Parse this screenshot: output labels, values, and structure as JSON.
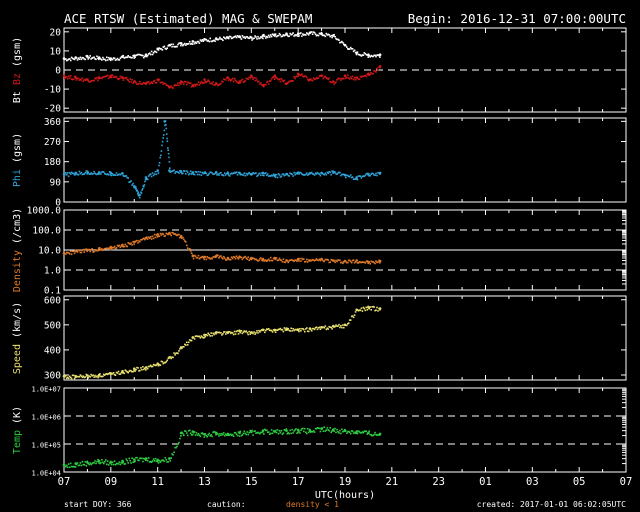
{
  "header": {
    "title": "ACE RTSW (Estimated) MAG & SWEPAM",
    "begin": "Begin: 2016-12-31 07:00:00UTC"
  },
  "footer": {
    "start_doy": "start DOY: 366",
    "caution_label": "caution:",
    "caution_text": "density < 1",
    "created": "created: 2017-01-01 06:02:05UTC"
  },
  "colors": {
    "background": "#000000",
    "frame": "#ffffff",
    "bt": "#ffffff",
    "bz": "#d01818",
    "phi": "#2fa3d8",
    "density": "#e07a28",
    "speed": "#e8e070",
    "temp": "#2ecc40",
    "caution": "#e07a28"
  },
  "chart_data": {
    "type": "scatter",
    "x_axis": {
      "label": "UTC(hours)",
      "range_hours": [
        7,
        31
      ],
      "tick_labels": [
        "07",
        "09",
        "11",
        "13",
        "15",
        "17",
        "19",
        "21",
        "23",
        "01",
        "03",
        "05",
        "07"
      ],
      "data_end_hour": 20.7
    },
    "panels": [
      {
        "id": "mag",
        "ylabel_parts": [
          {
            "text": "Bt",
            "color": "#ffffff"
          },
          {
            "text": "Bz",
            "color": "#d01818"
          },
          {
            "text": "(gsm)",
            "color": "#ffffff"
          }
        ],
        "ylim": [
          -22,
          22
        ],
        "yticks": [
          {
            "v": 20,
            "t": "20"
          },
          {
            "v": 10,
            "t": "10"
          },
          {
            "v": 0,
            "t": "0"
          },
          {
            "v": -10,
            "t": "-10"
          },
          {
            "v": -20,
            "t": "-20"
          }
        ],
        "dashed_lines": [
          0
        ],
        "series": [
          {
            "name": "Bt",
            "color": "#ffffff",
            "x": [
              7,
              7.5,
              8,
              8.5,
              9,
              9.5,
              10,
              10.5,
              11,
              11.5,
              12,
              12.5,
              13,
              13.5,
              14,
              14.5,
              15,
              15.5,
              16,
              16.5,
              17,
              17.5,
              18,
              18.5,
              19,
              19.5,
              20,
              20.5
            ],
            "y": [
              6,
              6.5,
              7,
              6.5,
              6,
              7,
              7.5,
              8,
              11,
              13,
              14,
              15,
              16,
              16.5,
              17,
              17.5,
              17,
              18,
              18.5,
              19,
              19,
              19.5,
              19,
              18,
              13,
              9,
              8,
              8
            ]
          },
          {
            "name": "Bz",
            "color": "#d01818",
            "x": [
              7,
              7.5,
              8,
              8.5,
              9,
              9.5,
              10,
              10.5,
              11,
              11.5,
              12,
              12.5,
              13,
              13.5,
              14,
              14.5,
              15,
              15.5,
              16,
              16.5,
              17,
              17.5,
              18,
              18.5,
              19,
              19.5,
              20,
              20.5
            ],
            "y": [
              -3,
              -4,
              -5,
              -4,
              -3,
              -4,
              -6,
              -7,
              -5,
              -9,
              -6,
              -8,
              -5,
              -7,
              -4,
              -6,
              -3,
              -8,
              -3,
              -7,
              -2,
              -5,
              -3,
              -6,
              -3,
              -4,
              -2,
              2
            ]
          }
        ]
      },
      {
        "id": "phi",
        "ylabel_parts": [
          {
            "text": "Phi",
            "color": "#2fa3d8"
          },
          {
            "text": "(gsm)",
            "color": "#ffffff"
          }
        ],
        "ylim": [
          0,
          375
        ],
        "yticks": [
          {
            "v": 360,
            "t": "360"
          },
          {
            "v": 270,
            "t": "270"
          },
          {
            "v": 180,
            "t": "180"
          },
          {
            "v": 90,
            "t": "90"
          },
          {
            "v": 0,
            "t": "0"
          }
        ],
        "dashed_lines": [],
        "series": [
          {
            "name": "Phi",
            "color": "#2fa3d8",
            "x": [
              7,
              7.5,
              8,
              8.5,
              9,
              9.5,
              10,
              10.2,
              10.5,
              11,
              11.3,
              11.5,
              12,
              12.5,
              13,
              13.5,
              14,
              14.5,
              15,
              15.5,
              16,
              16.5,
              17,
              17.5,
              18,
              18.5,
              19,
              19.5,
              20,
              20.5
            ],
            "y": [
              125,
              130,
              135,
              132,
              130,
              128,
              70,
              30,
              110,
              140,
              360,
              140,
              135,
              132,
              130,
              132,
              128,
              130,
              125,
              130,
              120,
              125,
              130,
              128,
              130,
              135,
              120,
              110,
              125,
              130
            ]
          }
        ]
      },
      {
        "id": "density",
        "ylabel_parts": [
          {
            "text": "Density",
            "color": "#e07a28"
          },
          {
            "text": "(/cm3)",
            "color": "#ffffff"
          }
        ],
        "scale": "log",
        "ylim": [
          0.1,
          1000
        ],
        "yticks": [
          {
            "v": 1000,
            "t": "1000.0"
          },
          {
            "v": 100,
            "t": "100.0"
          },
          {
            "v": 10,
            "t": "10.0"
          },
          {
            "v": 1,
            "t": "1.0"
          },
          {
            "v": 0.1,
            "t": "0.1"
          }
        ],
        "dashed_lines": [
          100,
          1
        ],
        "solid_lines": [
          10
        ],
        "series": [
          {
            "name": "Density",
            "color": "#e07a28",
            "x": [
              7,
              7.5,
              8,
              8.5,
              9,
              9.5,
              10,
              10.5,
              11,
              11.5,
              12,
              12.5,
              13,
              13.5,
              14,
              14.5,
              15,
              15.5,
              16,
              16.5,
              17,
              17.5,
              18,
              18.5,
              19,
              19.5,
              20,
              20.5
            ],
            "y": [
              7,
              9,
              10,
              12,
              14,
              18,
              25,
              40,
              60,
              70,
              50,
              5,
              4.5,
              5,
              4,
              4.5,
              4,
              3.5,
              4,
              3,
              3.5,
              3,
              3.5,
              3,
              2.8,
              3,
              2.5,
              2.8
            ]
          }
        ]
      },
      {
        "id": "speed",
        "ylabel_parts": [
          {
            "text": "Speed",
            "color": "#e8e070"
          },
          {
            "text": "(km/s)",
            "color": "#ffffff"
          }
        ],
        "ylim": [
          280,
          615
        ],
        "yticks": [
          {
            "v": 600,
            "t": "600"
          },
          {
            "v": 500,
            "t": "500"
          },
          {
            "v": 400,
            "t": "400"
          },
          {
            "v": 300,
            "t": "300"
          }
        ],
        "dashed_lines": [],
        "series": [
          {
            "name": "Speed",
            "color": "#e8e070",
            "x": [
              7,
              7.5,
              8,
              8.5,
              9,
              9.5,
              10,
              10.5,
              11,
              11.5,
              12,
              12.5,
              13,
              13.5,
              14,
              14.5,
              15,
              15.5,
              16,
              16.5,
              17,
              17.5,
              18,
              18.5,
              19,
              19.5,
              20,
              20.5
            ],
            "y": [
              295,
              295,
              298,
              300,
              305,
              315,
              325,
              330,
              345,
              370,
              410,
              450,
              460,
              470,
              470,
              475,
              470,
              480,
              480,
              485,
              480,
              485,
              490,
              495,
              500,
              560,
              570,
              565
            ]
          }
        ]
      },
      {
        "id": "temp",
        "ylabel_parts": [
          {
            "text": "Temp",
            "color": "#2ecc40"
          },
          {
            "text": "(K)",
            "color": "#ffffff"
          }
        ],
        "scale": "log",
        "ylim": [
          10000,
          10000000
        ],
        "yticks": [
          {
            "v": 10000000,
            "t": "1.0E+07"
          },
          {
            "v": 1000000,
            "t": "1.0E+06"
          },
          {
            "v": 100000,
            "t": "1.0E+05"
          },
          {
            "v": 10000,
            "t": "1.0E+04"
          }
        ],
        "dashed_lines": [
          1000000,
          100000
        ],
        "series": [
          {
            "name": "Temp",
            "color": "#2ecc40",
            "x": [
              7,
              7.5,
              8,
              8.5,
              9,
              9.5,
              10,
              10.5,
              11,
              11.5,
              12,
              12.5,
              13,
              13.5,
              14,
              14.5,
              15,
              15.5,
              16,
              16.5,
              17,
              17.5,
              18,
              18.5,
              19,
              19.5,
              20,
              20.5
            ],
            "y": [
              18000,
              20000,
              22000,
              25000,
              22000,
              25000,
              28000,
              30000,
              27000,
              30000,
              250000,
              280000,
              220000,
              250000,
              230000,
              250000,
              270000,
              300000,
              280000,
              300000,
              320000,
              300000,
              350000,
              330000,
              300000,
              280000,
              250000,
              230000
            ]
          }
        ]
      }
    ]
  }
}
